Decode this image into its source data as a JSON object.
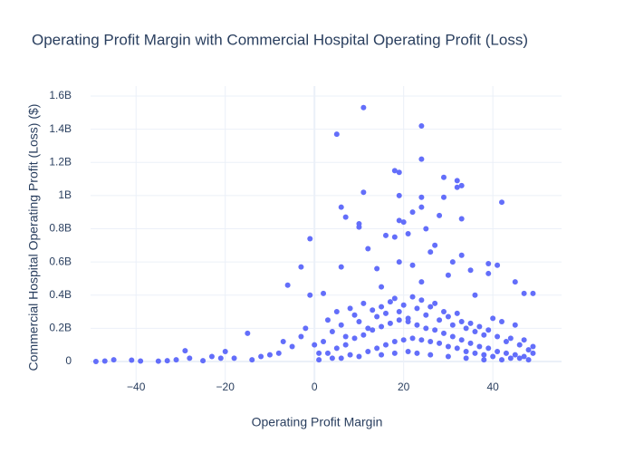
{
  "chart_data": {
    "type": "scatter",
    "title": "Operating Profit Margin with Commercial Hospital Operating Profit (Loss)",
    "x_label": "Operating Profit Margin",
    "y_label": "Commercial Hospital Operating Profit (Loss) ($)",
    "color": "#636efa",
    "grid": true,
    "xlim": [
      -50.2,
      55.4
    ],
    "ylim": [
      -142000000.0,
      1660000000.0
    ],
    "xticks": [
      {
        "value": -40,
        "label": "−40"
      },
      {
        "value": -20,
        "label": "−20"
      },
      0,
      20,
      40
    ],
    "yticks": [
      0,
      {
        "value": 200000000.0,
        "label": "0.2B"
      },
      {
        "value": 400000000.0,
        "label": "0.4B"
      },
      {
        "value": 600000000.0,
        "label": "0.6B"
      },
      {
        "value": 800000000.0,
        "label": "0.8B"
      },
      {
        "value": 1000000000.0,
        "label": "1B"
      },
      {
        "value": 1200000000.0,
        "label": "1.2B"
      },
      {
        "value": 1400000000.0,
        "label": "1.4B"
      },
      {
        "value": 1600000000.0,
        "label": "1.6B"
      }
    ],
    "x": [
      11,
      24,
      5,
      24,
      18,
      19,
      29,
      32,
      33,
      32,
      11,
      19,
      24,
      29,
      42,
      6,
      24,
      22,
      28,
      7,
      19,
      20,
      10,
      10,
      33,
      25,
      -1,
      16,
      18,
      21,
      12,
      27,
      26,
      33,
      19,
      22,
      31,
      39,
      41,
      6,
      -3,
      35,
      39,
      14,
      -6,
      45,
      47,
      49,
      -1,
      2,
      30,
      36,
      15,
      24,
      -49,
      -47,
      -45,
      -41,
      -39,
      -35,
      -33,
      -31,
      -29,
      -28,
      -25,
      -23,
      -21,
      -20,
      -18,
      -15,
      -14,
      -12,
      -10,
      -8,
      -7,
      -5,
      -3,
      -2,
      0,
      1,
      2,
      3,
      4,
      5,
      6,
      7,
      8,
      9,
      10,
      11,
      12,
      13,
      14,
      15,
      16,
      17,
      18,
      19,
      20,
      21,
      22,
      23,
      24,
      25,
      26,
      27,
      28,
      29,
      30,
      31,
      32,
      33,
      34,
      35,
      36,
      37,
      38,
      39,
      40,
      41,
      42,
      43,
      44,
      45,
      46,
      47,
      48,
      49,
      3,
      5,
      7,
      9,
      11,
      13,
      15,
      17,
      19,
      21,
      23,
      25,
      27,
      29,
      31,
      33,
      35,
      37,
      39,
      41,
      43,
      45,
      47,
      49,
      4,
      8,
      12,
      14,
      16,
      18,
      20,
      22,
      24,
      26,
      28,
      30,
      32,
      34,
      36,
      38,
      40,
      44,
      48,
      1,
      6,
      10,
      15,
      18,
      21,
      23,
      26,
      30,
      34,
      38,
      42,
      46
    ],
    "values": [
      1530000000.0,
      1420000000.0,
      1370000000.0,
      1220000000.0,
      1150000000.0,
      1140000000.0,
      1110000000.0,
      1090000000.0,
      1060000000.0,
      1050000000.0,
      1020000000.0,
      1000000000.0,
      990000000.0,
      990000000.0,
      960000000.0,
      930000000.0,
      930000000.0,
      900000000.0,
      880000000.0,
      870000000.0,
      850000000.0,
      840000000.0,
      830000000.0,
      810000000.0,
      860000000.0,
      800000000.0,
      740000000.0,
      760000000.0,
      750000000.0,
      770000000.0,
      680000000.0,
      700000000.0,
      660000000.0,
      640000000.0,
      600000000.0,
      580000000.0,
      600000000.0,
      590000000.0,
      580000000.0,
      570000000.0,
      570000000.0,
      550000000.0,
      530000000.0,
      560000000.0,
      460000000.0,
      480000000.0,
      410000000.0,
      410000000.0,
      400000000.0,
      410000000.0,
      520000000.0,
      400000000.0,
      450000000.0,
      480000000.0,
      0,
      3000000.0,
      10000000.0,
      8000000.0,
      3000000.0,
      2000000.0,
      5000000.0,
      10000000.0,
      65000000.0,
      20000000.0,
      5000000.0,
      30000000.0,
      20000000.0,
      60000000.0,
      20000000.0,
      170000000.0,
      10000000.0,
      30000000.0,
      40000000.0,
      50000000.0,
      120000000.0,
      90000000.0,
      150000000.0,
      200000000.0,
      100000000.0,
      50000000.0,
      120000000.0,
      250000000.0,
      180000000.0,
      300000000.0,
      220000000.0,
      150000000.0,
      320000000.0,
      280000000.0,
      240000000.0,
      350000000.0,
      200000000.0,
      310000000.0,
      270000000.0,
      330000000.0,
      290000000.0,
      360000000.0,
      380000000.0,
      300000000.0,
      340000000.0,
      260000000.0,
      390000000.0,
      320000000.0,
      370000000.0,
      280000000.0,
      330000000.0,
      350000000.0,
      250000000.0,
      300000000.0,
      270000000.0,
      220000000.0,
      290000000.0,
      240000000.0,
      200000000.0,
      230000000.0,
      180000000.0,
      210000000.0,
      160000000.0,
      190000000.0,
      260000000.0,
      150000000.0,
      240000000.0,
      120000000.0,
      140000000.0,
      220000000.0,
      100000000.0,
      130000000.0,
      70000000.0,
      90000000.0,
      50000000.0,
      80000000.0,
      100000000.0,
      140000000.0,
      160000000.0,
      190000000.0,
      210000000.0,
      230000000.0,
      250000000.0,
      240000000.0,
      220000000.0,
      200000000.0,
      190000000.0,
      170000000.0,
      150000000.0,
      130000000.0,
      110000000.0,
      90000000.0,
      80000000.0,
      60000000.0,
      50000000.0,
      40000000.0,
      30000000.0,
      50000000.0,
      20000000.0,
      40000000.0,
      60000000.0,
      80000000.0,
      100000000.0,
      120000000.0,
      130000000.0,
      140000000.0,
      130000000.0,
      120000000.0,
      110000000.0,
      90000000.0,
      80000000.0,
      60000000.0,
      50000000.0,
      40000000.0,
      30000000.0,
      20000000.0,
      10000000.0,
      10000000.0,
      20000000.0,
      30000000.0,
      40000000.0,
      50000000.0,
      60000000.0,
      50000000.0,
      40000000.0,
      30000000.0,
      20000000.0,
      10000000.0,
      10000000.0,
      20000000.0
    ]
  }
}
